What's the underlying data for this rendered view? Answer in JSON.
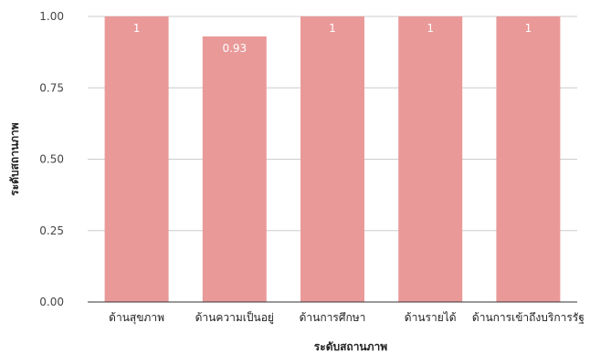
{
  "chart_data": {
    "type": "bar",
    "categories": [
      "ด้านสุขภาพ",
      "ด้านความเป็นอยู่",
      "ด้านการศึกษา",
      "ด้านรายได้",
      "ด้านการเข้าถึงบริการรัฐ"
    ],
    "values": [
      1,
      0.93,
      1,
      1,
      1
    ],
    "data_labels": [
      "1",
      "0.93",
      "1",
      "1",
      "1"
    ],
    "xlabel": "ระดับสถานภาพ",
    "ylabel": "ระดับสถานภาพ",
    "ylim": [
      0,
      1
    ],
    "yticks": [
      "0.00",
      "0.25",
      "0.50",
      "0.75",
      "1.00"
    ],
    "grid": true,
    "legend": "none",
    "colors": {
      "bar": "#ea9999",
      "grid": "#cccccc",
      "axis": "#333333"
    }
  }
}
